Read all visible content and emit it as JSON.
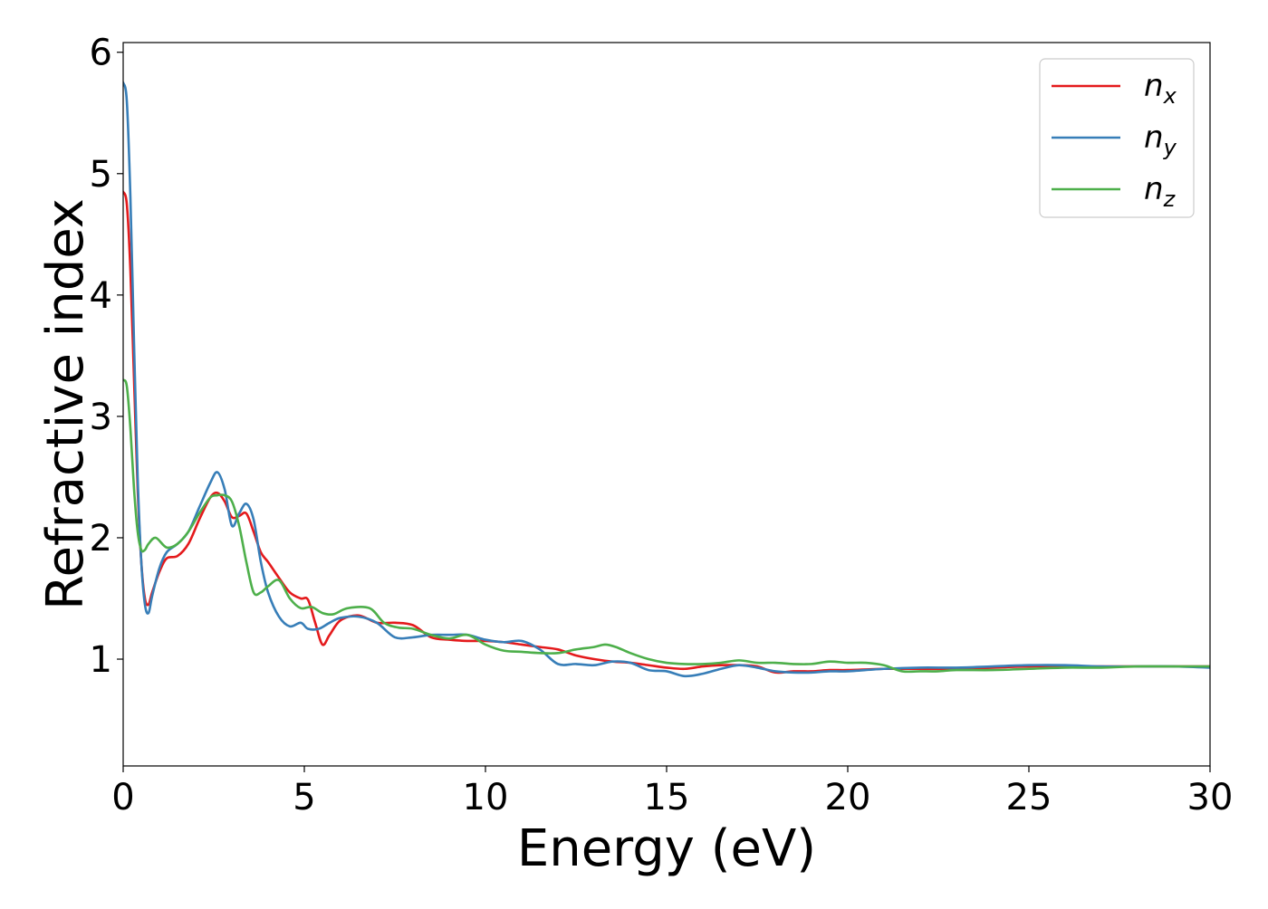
{
  "chart_data": {
    "type": "line",
    "title": "",
    "xlabel": "Energy (eV)",
    "ylabel": "Refractive index",
    "xlim": [
      0,
      30
    ],
    "ylim": [
      0.12,
      6.08
    ],
    "xticks": [
      0,
      5,
      10,
      15,
      20,
      25,
      30
    ],
    "yticks": [
      1,
      2,
      3,
      4,
      5,
      6
    ],
    "grid": false,
    "legend_position": "top-right",
    "series": [
      {
        "name": "n",
        "subscript": "x",
        "color": "#e41a1c",
        "points": [
          [
            0.0,
            4.85
          ],
          [
            0.1,
            4.75
          ],
          [
            0.2,
            4.2
          ],
          [
            0.3,
            3.3
          ],
          [
            0.4,
            2.4
          ],
          [
            0.5,
            1.8
          ],
          [
            0.6,
            1.5
          ],
          [
            0.7,
            1.45
          ],
          [
            0.8,
            1.55
          ],
          [
            1.0,
            1.72
          ],
          [
            1.2,
            1.83
          ],
          [
            1.5,
            1.85
          ],
          [
            1.8,
            1.95
          ],
          [
            2.1,
            2.15
          ],
          [
            2.4,
            2.33
          ],
          [
            2.6,
            2.37
          ],
          [
            2.8,
            2.3
          ],
          [
            3.0,
            2.17
          ],
          [
            3.2,
            2.18
          ],
          [
            3.4,
            2.2
          ],
          [
            3.6,
            2.05
          ],
          [
            3.8,
            1.88
          ],
          [
            4.0,
            1.8
          ],
          [
            4.3,
            1.67
          ],
          [
            4.6,
            1.55
          ],
          [
            4.9,
            1.5
          ],
          [
            5.1,
            1.49
          ],
          [
            5.3,
            1.3
          ],
          [
            5.5,
            1.12
          ],
          [
            5.7,
            1.2
          ],
          [
            6.0,
            1.32
          ],
          [
            6.5,
            1.36
          ],
          [
            7.0,
            1.3
          ],
          [
            7.5,
            1.3
          ],
          [
            8.0,
            1.28
          ],
          [
            8.5,
            1.18
          ],
          [
            9.0,
            1.16
          ],
          [
            9.5,
            1.15
          ],
          [
            10.0,
            1.15
          ],
          [
            10.5,
            1.14
          ],
          [
            11.0,
            1.12
          ],
          [
            11.5,
            1.1
          ],
          [
            12.0,
            1.08
          ],
          [
            12.5,
            1.03
          ],
          [
            13.0,
            1.0
          ],
          [
            13.5,
            0.98
          ],
          [
            14.0,
            0.97
          ],
          [
            14.5,
            0.95
          ],
          [
            15.0,
            0.93
          ],
          [
            15.5,
            0.92
          ],
          [
            16.0,
            0.94
          ],
          [
            16.5,
            0.95
          ],
          [
            17.0,
            0.95
          ],
          [
            17.5,
            0.94
          ],
          [
            18.0,
            0.89
          ],
          [
            18.5,
            0.9
          ],
          [
            19.0,
            0.9
          ],
          [
            19.5,
            0.91
          ],
          [
            20.0,
            0.91
          ],
          [
            21.0,
            0.92
          ],
          [
            22.0,
            0.92
          ],
          [
            23.0,
            0.92
          ],
          [
            24.0,
            0.93
          ],
          [
            25.0,
            0.94
          ],
          [
            26.0,
            0.94
          ],
          [
            27.0,
            0.94
          ],
          [
            28.0,
            0.94
          ],
          [
            29.0,
            0.94
          ],
          [
            30.0,
            0.94
          ]
        ]
      },
      {
        "name": "n",
        "subscript": "y",
        "color": "#377eb8",
        "points": [
          [
            0.0,
            5.75
          ],
          [
            0.1,
            5.6
          ],
          [
            0.2,
            4.8
          ],
          [
            0.3,
            3.6
          ],
          [
            0.4,
            2.5
          ],
          [
            0.5,
            1.8
          ],
          [
            0.6,
            1.45
          ],
          [
            0.7,
            1.38
          ],
          [
            0.8,
            1.52
          ],
          [
            1.0,
            1.75
          ],
          [
            1.2,
            1.88
          ],
          [
            1.5,
            1.95
          ],
          [
            1.8,
            2.05
          ],
          [
            2.1,
            2.25
          ],
          [
            2.4,
            2.45
          ],
          [
            2.6,
            2.54
          ],
          [
            2.8,
            2.4
          ],
          [
            3.0,
            2.1
          ],
          [
            3.2,
            2.2
          ],
          [
            3.4,
            2.28
          ],
          [
            3.6,
            2.15
          ],
          [
            3.8,
            1.8
          ],
          [
            4.0,
            1.55
          ],
          [
            4.3,
            1.35
          ],
          [
            4.6,
            1.27
          ],
          [
            4.9,
            1.3
          ],
          [
            5.1,
            1.25
          ],
          [
            5.4,
            1.25
          ],
          [
            5.7,
            1.3
          ],
          [
            6.0,
            1.34
          ],
          [
            6.5,
            1.35
          ],
          [
            7.0,
            1.3
          ],
          [
            7.5,
            1.18
          ],
          [
            8.0,
            1.18
          ],
          [
            8.5,
            1.2
          ],
          [
            9.0,
            1.2
          ],
          [
            9.5,
            1.2
          ],
          [
            10.0,
            1.16
          ],
          [
            10.5,
            1.14
          ],
          [
            11.0,
            1.15
          ],
          [
            11.5,
            1.08
          ],
          [
            12.0,
            0.96
          ],
          [
            12.5,
            0.96
          ],
          [
            13.0,
            0.95
          ],
          [
            13.5,
            0.98
          ],
          [
            14.0,
            0.97
          ],
          [
            14.5,
            0.91
          ],
          [
            15.0,
            0.9
          ],
          [
            15.5,
            0.86
          ],
          [
            16.0,
            0.88
          ],
          [
            16.5,
            0.92
          ],
          [
            17.0,
            0.95
          ],
          [
            17.5,
            0.93
          ],
          [
            18.0,
            0.9
          ],
          [
            18.5,
            0.89
          ],
          [
            19.0,
            0.89
          ],
          [
            19.5,
            0.9
          ],
          [
            20.0,
            0.9
          ],
          [
            21.0,
            0.92
          ],
          [
            22.0,
            0.93
          ],
          [
            23.0,
            0.93
          ],
          [
            24.0,
            0.94
          ],
          [
            25.0,
            0.95
          ],
          [
            26.0,
            0.95
          ],
          [
            27.0,
            0.94
          ],
          [
            28.0,
            0.94
          ],
          [
            29.0,
            0.94
          ],
          [
            30.0,
            0.93
          ]
        ]
      },
      {
        "name": "n",
        "subscript": "z",
        "color": "#4daf4a",
        "points": [
          [
            0.0,
            3.3
          ],
          [
            0.1,
            3.25
          ],
          [
            0.2,
            2.9
          ],
          [
            0.3,
            2.4
          ],
          [
            0.4,
            2.05
          ],
          [
            0.5,
            1.9
          ],
          [
            0.6,
            1.9
          ],
          [
            0.7,
            1.95
          ],
          [
            0.9,
            2.0
          ],
          [
            1.2,
            1.92
          ],
          [
            1.5,
            1.95
          ],
          [
            1.8,
            2.05
          ],
          [
            2.1,
            2.2
          ],
          [
            2.4,
            2.33
          ],
          [
            2.6,
            2.35
          ],
          [
            2.8,
            2.35
          ],
          [
            3.0,
            2.3
          ],
          [
            3.2,
            2.1
          ],
          [
            3.4,
            1.8
          ],
          [
            3.6,
            1.55
          ],
          [
            3.8,
            1.55
          ],
          [
            4.0,
            1.6
          ],
          [
            4.3,
            1.65
          ],
          [
            4.6,
            1.5
          ],
          [
            4.9,
            1.42
          ],
          [
            5.2,
            1.43
          ],
          [
            5.5,
            1.38
          ],
          [
            5.8,
            1.37
          ],
          [
            6.2,
            1.42
          ],
          [
            6.8,
            1.42
          ],
          [
            7.2,
            1.3
          ],
          [
            7.6,
            1.26
          ],
          [
            8.0,
            1.25
          ],
          [
            8.5,
            1.2
          ],
          [
            9.0,
            1.17
          ],
          [
            9.5,
            1.2
          ],
          [
            10.0,
            1.12
          ],
          [
            10.5,
            1.07
          ],
          [
            11.0,
            1.06
          ],
          [
            11.5,
            1.05
          ],
          [
            12.0,
            1.05
          ],
          [
            12.5,
            1.08
          ],
          [
            13.0,
            1.1
          ],
          [
            13.3,
            1.12
          ],
          [
            13.6,
            1.1
          ],
          [
            14.0,
            1.05
          ],
          [
            14.5,
            1.0
          ],
          [
            15.0,
            0.97
          ],
          [
            15.5,
            0.96
          ],
          [
            16.0,
            0.96
          ],
          [
            16.5,
            0.97
          ],
          [
            17.0,
            0.99
          ],
          [
            17.5,
            0.97
          ],
          [
            18.0,
            0.97
          ],
          [
            18.5,
            0.96
          ],
          [
            19.0,
            0.96
          ],
          [
            19.5,
            0.98
          ],
          [
            20.0,
            0.97
          ],
          [
            20.5,
            0.97
          ],
          [
            21.0,
            0.95
          ],
          [
            21.5,
            0.9
          ],
          [
            22.0,
            0.9
          ],
          [
            22.5,
            0.9
          ],
          [
            23.0,
            0.91
          ],
          [
            24.0,
            0.91
          ],
          [
            25.0,
            0.92
          ],
          [
            26.0,
            0.93
          ],
          [
            27.0,
            0.93
          ],
          [
            28.0,
            0.94
          ],
          [
            29.0,
            0.94
          ],
          [
            30.0,
            0.94
          ]
        ]
      }
    ]
  }
}
